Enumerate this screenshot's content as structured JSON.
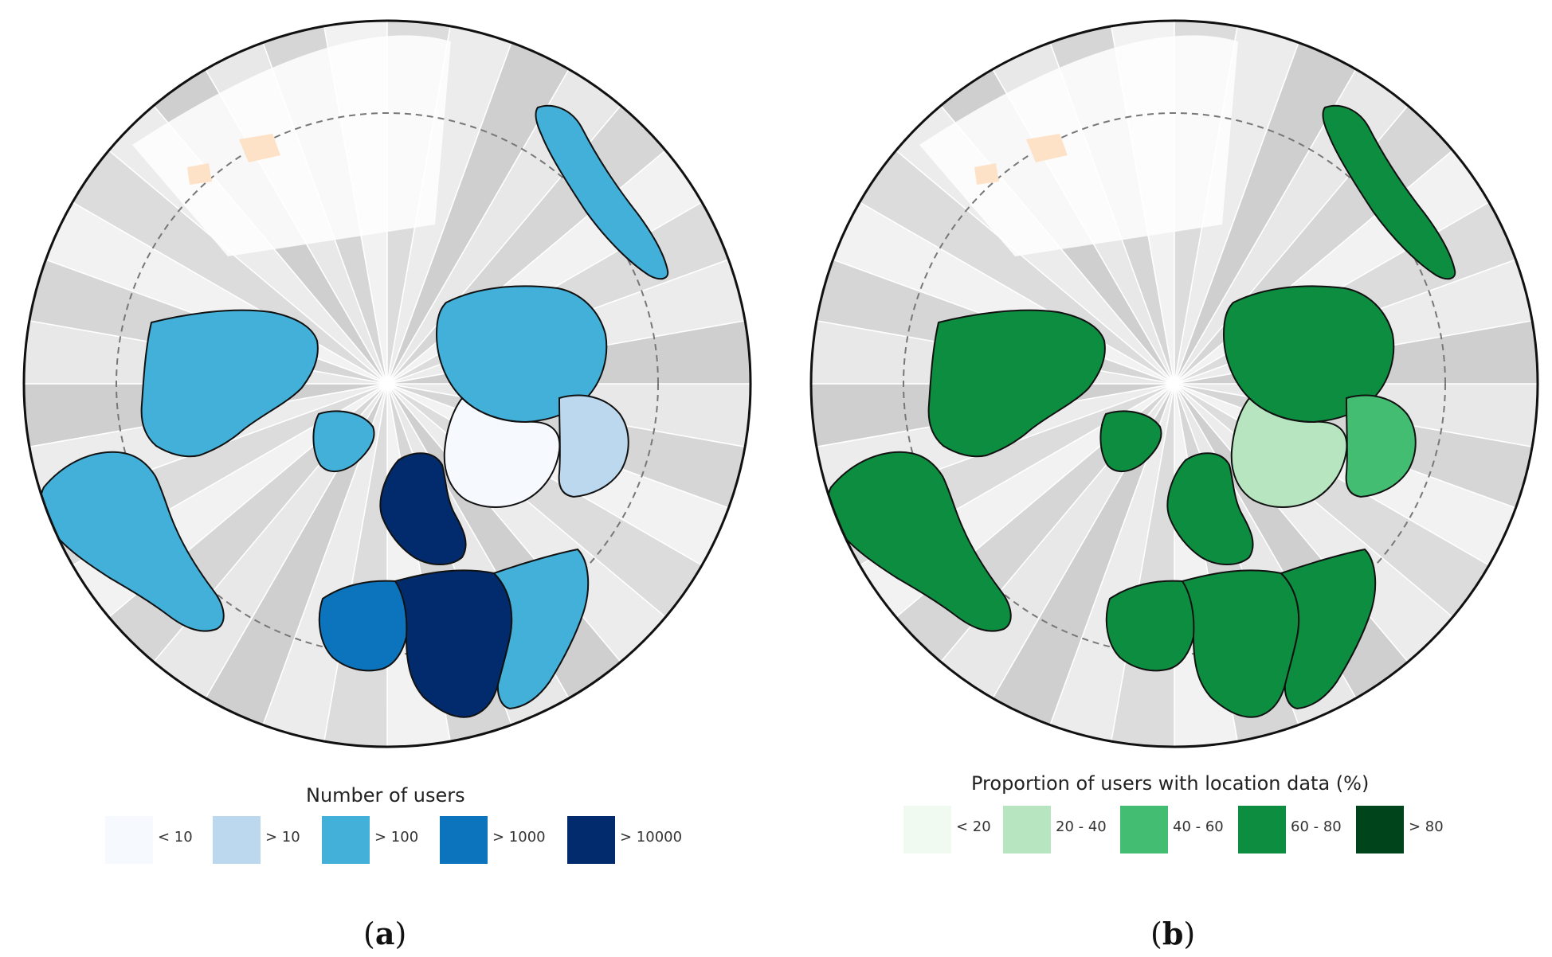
{
  "panels": [
    {
      "id": "a",
      "legend_title": "Number of users",
      "legend_items": [
        {
          "label": "< 10",
          "color": "#f6faff"
        },
        {
          "label": "> 10",
          "color": "#bcd8ee"
        },
        {
          "label": "> 100",
          "color": "#42b0d9"
        },
        {
          "label": "> 1000",
          "color": "#0b74bd"
        },
        {
          "label": "> 10000",
          "color": "#022b6e"
        }
      ],
      "caption_open": "(",
      "caption_letter": "a",
      "caption_close": ")",
      "region_colors": {
        "north_america": "#42b0d9",
        "greenland": "#42b0d9",
        "south_america": "#42b0d9",
        "europe": "#022b6e",
        "africa_west": "#0b74bd",
        "africa_central": "#022b6e",
        "africa_east": "#42b0d9",
        "russia": "#42b0d9",
        "asia_central": "#f6faff",
        "asia_south": "#bcd8ee",
        "australia": "#42b0d9",
        "missing": "#fde2c8"
      }
    },
    {
      "id": "b",
      "legend_title": "Proportion of users with location data (%)",
      "legend_items": [
        {
          "label": "< 20",
          "color": "#f1faf1"
        },
        {
          "label": "20 - 40",
          "color": "#b6e5bf"
        },
        {
          "label": "40 - 60",
          "color": "#43bd72"
        },
        {
          "label": "60 - 80",
          "color": "#0c8d3f"
        },
        {
          "label": "> 80",
          "color": "#00441b"
        }
      ],
      "caption_open": "(",
      "caption_letter": "b",
      "caption_close": ")",
      "region_colors": {
        "north_america": "#0c8d3f",
        "greenland": "#0c8d3f",
        "south_america": "#0c8d3f",
        "europe": "#0c8d3f",
        "africa_west": "#0c8d3f",
        "africa_central": "#0c8d3f",
        "africa_east": "#0c8d3f",
        "russia": "#0c8d3f",
        "asia_central": "#b6e5bf",
        "asia_south": "#43bd72",
        "australia": "#0c8d3f",
        "missing": "#fde2c8"
      }
    }
  ]
}
